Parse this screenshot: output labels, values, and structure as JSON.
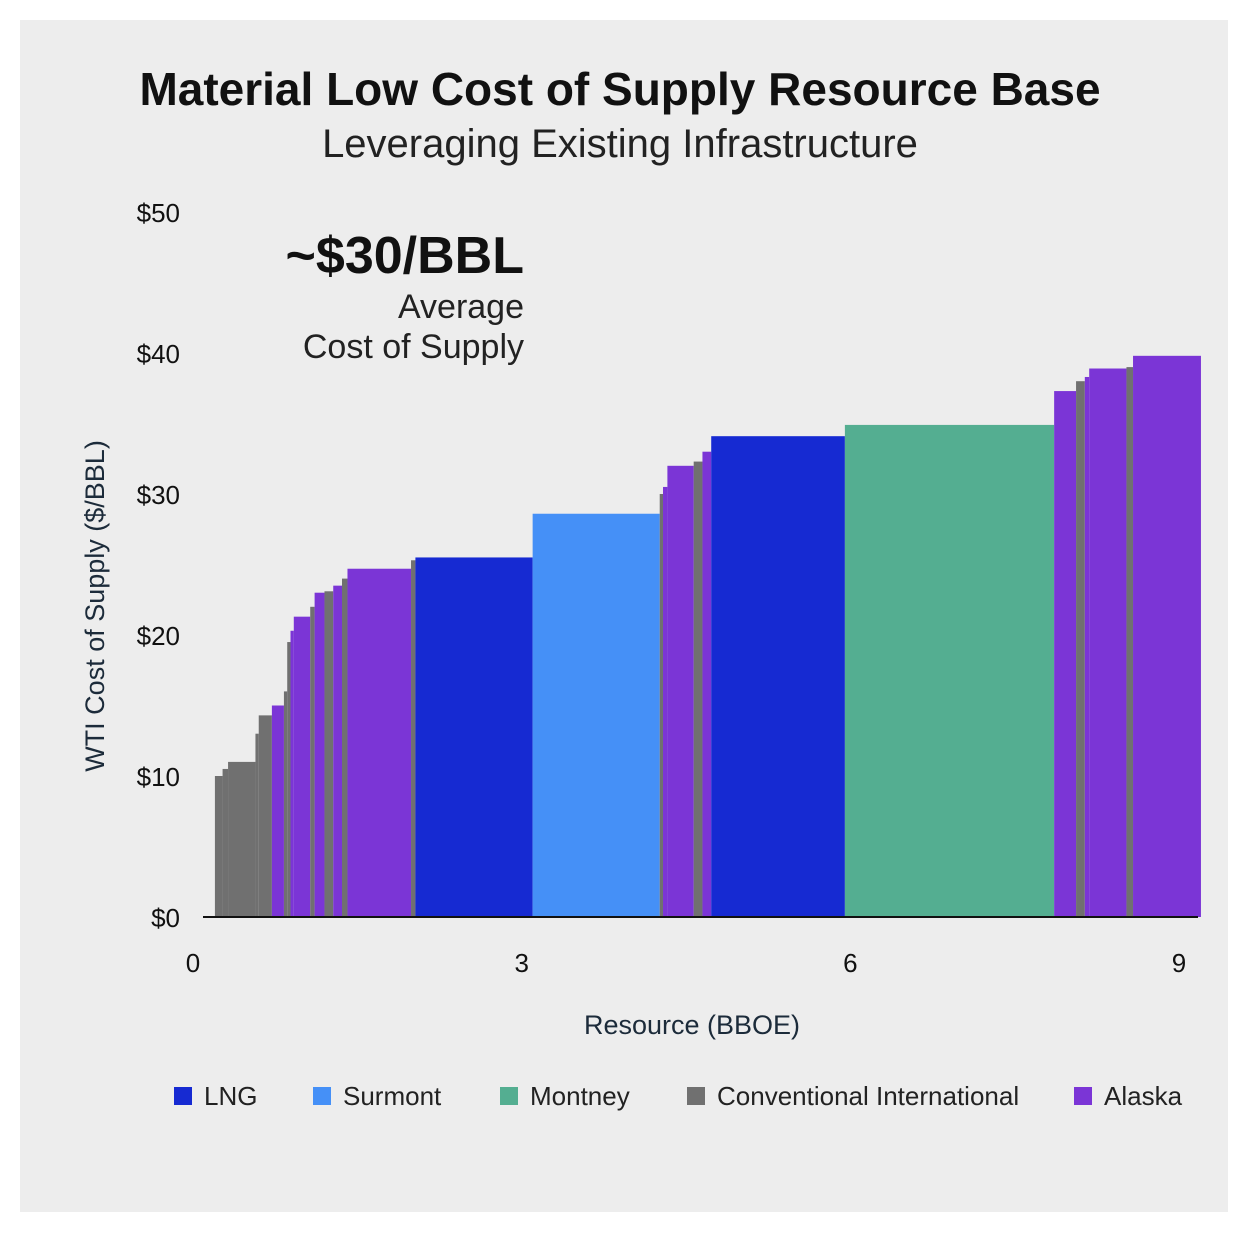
{
  "chart_data": {
    "type": "bar",
    "title": "Material Low Cost of Supply Resource Base",
    "subtitle": "Leveraging Existing Infrastructure",
    "xlabel": "Resource (BBOE)",
    "ylabel": "WTI Cost of Supply ($/BBL)",
    "xlim": [
      0,
      9.1
    ],
    "ylim": [
      0,
      50
    ],
    "x_ticks": [
      "0",
      "3",
      "6",
      "9"
    ],
    "y_ticks": [
      "$0",
      "$10",
      "$20",
      "$30",
      "$40",
      "$50"
    ],
    "callout": {
      "value": "~$30/BBL",
      "line1": "Average",
      "line2": "Cost of Supply"
    },
    "colors": {
      "LNG": "#162ad2",
      "Surmont": "#4590f7",
      "Montney": "#54ae91",
      "Conventional International": "#707070",
      "Alaska": "#7b35d6"
    },
    "legend": [
      "LNG",
      "Surmont",
      "Montney",
      "Conventional International",
      "Alaska"
    ],
    "segments": [
      {
        "x0": 0.2,
        "x1": 0.27,
        "y": 10.0,
        "category": "Conventional International"
      },
      {
        "x0": 0.27,
        "x1": 0.32,
        "y": 10.5,
        "category": "Conventional International"
      },
      {
        "x0": 0.32,
        "x1": 0.57,
        "y": 11.0,
        "category": "Conventional International"
      },
      {
        "x0": 0.57,
        "x1": 0.6,
        "y": 13.0,
        "category": "Conventional International"
      },
      {
        "x0": 0.6,
        "x1": 0.72,
        "y": 14.3,
        "category": "Conventional International"
      },
      {
        "x0": 0.72,
        "x1": 0.83,
        "y": 15.0,
        "category": "Alaska"
      },
      {
        "x0": 0.83,
        "x1": 0.86,
        "y": 16.0,
        "category": "Conventional International"
      },
      {
        "x0": 0.86,
        "x1": 0.89,
        "y": 19.5,
        "category": "Conventional International"
      },
      {
        "x0": 0.89,
        "x1": 0.92,
        "y": 20.3,
        "category": "Alaska"
      },
      {
        "x0": 0.92,
        "x1": 1.07,
        "y": 21.3,
        "category": "Alaska"
      },
      {
        "x0": 1.07,
        "x1": 1.11,
        "y": 22.0,
        "category": "Conventional International"
      },
      {
        "x0": 1.11,
        "x1": 1.2,
        "y": 23.0,
        "category": "Alaska"
      },
      {
        "x0": 1.2,
        "x1": 1.28,
        "y": 23.1,
        "category": "Conventional International"
      },
      {
        "x0": 1.28,
        "x1": 1.36,
        "y": 23.5,
        "category": "Alaska"
      },
      {
        "x0": 1.36,
        "x1": 1.41,
        "y": 24.0,
        "category": "Conventional International"
      },
      {
        "x0": 1.41,
        "x1": 1.99,
        "y": 24.7,
        "category": "Alaska"
      },
      {
        "x0": 1.99,
        "x1": 2.03,
        "y": 25.3,
        "category": "Conventional International"
      },
      {
        "x0": 2.03,
        "x1": 3.1,
        "y": 25.5,
        "category": "LNG"
      },
      {
        "x0": 3.1,
        "x1": 4.26,
        "y": 28.6,
        "category": "Surmont"
      },
      {
        "x0": 4.26,
        "x1": 4.29,
        "y": 30.0,
        "category": "Conventional International"
      },
      {
        "x0": 4.29,
        "x1": 4.33,
        "y": 30.5,
        "category": "Alaska"
      },
      {
        "x0": 4.33,
        "x1": 4.57,
        "y": 32.0,
        "category": "Alaska"
      },
      {
        "x0": 4.57,
        "x1": 4.65,
        "y": 32.3,
        "category": "Conventional International"
      },
      {
        "x0": 4.65,
        "x1": 4.73,
        "y": 33.0,
        "category": "Alaska"
      },
      {
        "x0": 4.73,
        "x1": 5.95,
        "y": 34.1,
        "category": "LNG"
      },
      {
        "x0": 5.95,
        "x1": 7.86,
        "y": 34.9,
        "category": "Montney"
      },
      {
        "x0": 7.86,
        "x1": 8.06,
        "y": 37.3,
        "category": "Alaska"
      },
      {
        "x0": 8.06,
        "x1": 8.14,
        "y": 38.0,
        "category": "Conventional International"
      },
      {
        "x0": 8.14,
        "x1": 8.18,
        "y": 38.3,
        "category": "Alaska"
      },
      {
        "x0": 8.18,
        "x1": 8.52,
        "y": 38.9,
        "category": "Alaska"
      },
      {
        "x0": 8.52,
        "x1": 8.58,
        "y": 39.0,
        "category": "Conventional International"
      },
      {
        "x0": 8.58,
        "x1": 9.2,
        "y": 39.8,
        "category": "Alaska"
      }
    ]
  }
}
